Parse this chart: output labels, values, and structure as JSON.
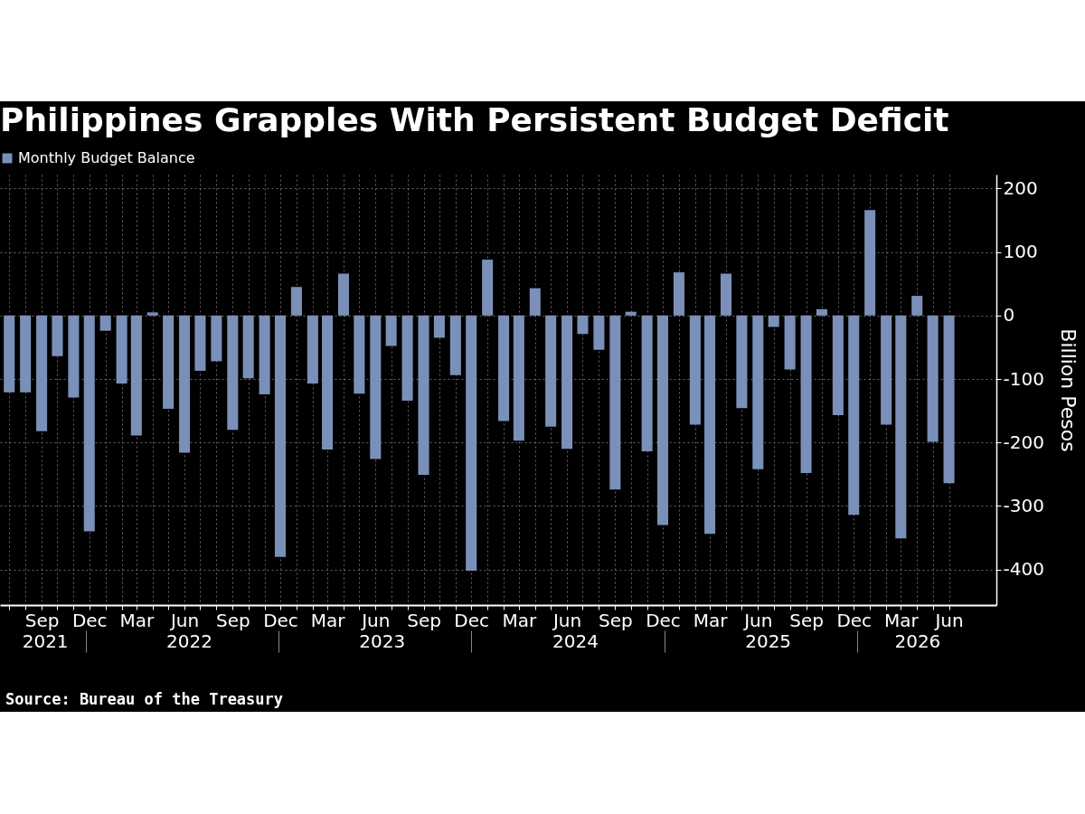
{
  "chart_data": {
    "type": "bar",
    "title": "Philippines Grapples With Persistent Budget Deficit",
    "ylabel": "Billion Pesos",
    "annotations": [
      "Source: Bureau of the Treasury"
    ],
    "x": [
      "2021-07",
      "2021-08",
      "2021-09",
      "2021-10",
      "2021-11",
      "2021-12",
      "2022-01",
      "2022-02",
      "2022-03",
      "2022-04",
      "2022-05",
      "2022-06",
      "2022-07",
      "2022-08",
      "2022-09",
      "2022-10",
      "2022-11",
      "2022-12",
      "2023-01",
      "2023-02",
      "2023-03",
      "2023-04",
      "2023-05",
      "2023-06",
      "2023-07",
      "2023-08",
      "2023-09",
      "2023-10",
      "2023-11",
      "2023-12",
      "2024-01",
      "2024-02",
      "2024-03",
      "2024-04",
      "2024-05",
      "2024-06",
      "2024-07",
      "2024-08",
      "2024-09",
      "2024-10",
      "2024-11",
      "2024-12",
      "2025-01",
      "2025-02",
      "2025-03",
      "2025-04",
      "2025-05",
      "2025-06",
      "2025-07",
      "2025-08",
      "2025-09",
      "2025-10",
      "2025-11",
      "2025-12",
      "2026-01",
      "2026-02",
      "2026-03",
      "2026-04",
      "2026-05",
      "2026-06"
    ],
    "series": [
      {
        "name": "Monthly Budget Balance",
        "color": "#7b90b8",
        "values": [
          -121,
          -121,
          -182,
          -64,
          -129,
          -340,
          -24,
          -107,
          -189,
          5,
          -147,
          -216,
          -87,
          -72,
          -180,
          -99,
          -124,
          -380,
          45,
          -107,
          -211,
          66,
          -123,
          -226,
          -48,
          -134,
          -251,
          -35,
          -94,
          -402,
          88,
          -166,
          -197,
          43,
          -175,
          -210,
          -29,
          -54,
          -274,
          6,
          -214,
          -330,
          68,
          -172,
          -344,
          66,
          -146,
          -242,
          -18,
          -85,
          -248,
          10,
          -157,
          -314,
          166,
          -172,
          -351,
          31,
          -199,
          -264
        ]
      }
    ],
    "xlim": [
      "2021-06-22",
      "2026-08-22"
    ],
    "xticks": [
      {
        "value": "2021-07",
        "label": null
      },
      {
        "value": "2021-08",
        "label": null
      },
      {
        "value": "2021-09",
        "label": "Sep"
      },
      {
        "value": "2021-10",
        "label": null
      },
      {
        "value": "2021-11",
        "label": null
      },
      {
        "value": "2021-12",
        "label": "Dec"
      },
      {
        "value": "2022-01",
        "label": null
      },
      {
        "value": "2022-02",
        "label": null
      },
      {
        "value": "2022-03",
        "label": "Mar"
      },
      {
        "value": "2022-04",
        "label": null
      },
      {
        "value": "2022-05",
        "label": null
      },
      {
        "value": "2022-06",
        "label": "Jun"
      },
      {
        "value": "2022-07",
        "label": null
      },
      {
        "value": "2022-08",
        "label": null
      },
      {
        "value": "2022-09",
        "label": "Sep"
      },
      {
        "value": "2022-10",
        "label": null
      },
      {
        "value": "2022-11",
        "label": null
      },
      {
        "value": "2022-12",
        "label": "Dec"
      },
      {
        "value": "2023-01",
        "label": null
      },
      {
        "value": "2023-02",
        "label": null
      },
      {
        "value": "2023-03",
        "label": "Mar"
      },
      {
        "value": "2023-04",
        "label": null
      },
      {
        "value": "2023-05",
        "label": null
      },
      {
        "value": "2023-06",
        "label": "Jun"
      },
      {
        "value": "2023-07",
        "label": null
      },
      {
        "value": "2023-08",
        "label": null
      },
      {
        "value": "2023-09",
        "label": "Sep"
      },
      {
        "value": "2023-10",
        "label": null
      },
      {
        "value": "2023-11",
        "label": null
      },
      {
        "value": "2023-12",
        "label": "Dec"
      },
      {
        "value": "2024-01",
        "label": null
      },
      {
        "value": "2024-02",
        "label": null
      },
      {
        "value": "2024-03",
        "label": "Mar"
      },
      {
        "value": "2024-04",
        "label": null
      },
      {
        "value": "2024-05",
        "label": null
      },
      {
        "value": "2024-06",
        "label": "Jun"
      },
      {
        "value": "2024-07",
        "label": null
      },
      {
        "value": "2024-08",
        "label": null
      },
      {
        "value": "2024-09",
        "label": "Sep"
      },
      {
        "value": "2024-10",
        "label": null
      },
      {
        "value": "2024-11",
        "label": null
      },
      {
        "value": "2024-12",
        "label": "Dec"
      },
      {
        "value": "2025-01",
        "label": null
      },
      {
        "value": "2025-02",
        "label": null
      },
      {
        "value": "2025-03",
        "label": "Mar"
      },
      {
        "value": "2025-04",
        "label": null
      },
      {
        "value": "2025-05",
        "label": null
      },
      {
        "value": "2025-06",
        "label": "Jun"
      },
      {
        "value": "2025-07",
        "label": null
      },
      {
        "value": "2025-08",
        "label": null
      },
      {
        "value": "2025-09",
        "label": "Sep"
      },
      {
        "value": "2025-10",
        "label": null
      },
      {
        "value": "2025-11",
        "label": null
      },
      {
        "value": "2025-12",
        "label": "Dec"
      },
      {
        "value": "2026-01",
        "label": null
      },
      {
        "value": "2026-02",
        "label": null
      },
      {
        "value": "2026-03",
        "label": "Mar"
      },
      {
        "value": "2026-04",
        "label": null
      },
      {
        "value": "2026-05",
        "label": null
      },
      {
        "value": "2026-06",
        "label": "Jun"
      }
    ],
    "x2lim": [
      "2021-06-22",
      "2026-08-22"
    ],
    "x2ticks": [
      {
        "value": "2021-09-15",
        "label": "2021"
      },
      {
        "value": "2021-12-01",
        "label": null
      },
      {
        "value": "2022-06-15",
        "label": "2022"
      },
      {
        "value": "2022-12-01",
        "label": null
      },
      {
        "value": "2023-06-15",
        "label": "2023"
      },
      {
        "value": "2023-12-01",
        "label": null
      },
      {
        "value": "2024-06-15",
        "label": "2024"
      },
      {
        "value": "2024-12-01",
        "label": null
      },
      {
        "value": "2025-06-15",
        "label": "2025"
      },
      {
        "value": "2025-12-01",
        "label": null
      },
      {
        "value": "2026-03-25",
        "label": "2026"
      }
    ],
    "ylim": [
      -456,
      222
    ],
    "yticks": [
      -400,
      -300,
      -200,
      -100,
      0,
      100,
      200
    ],
    "grid": true,
    "legend": "top left"
  }
}
